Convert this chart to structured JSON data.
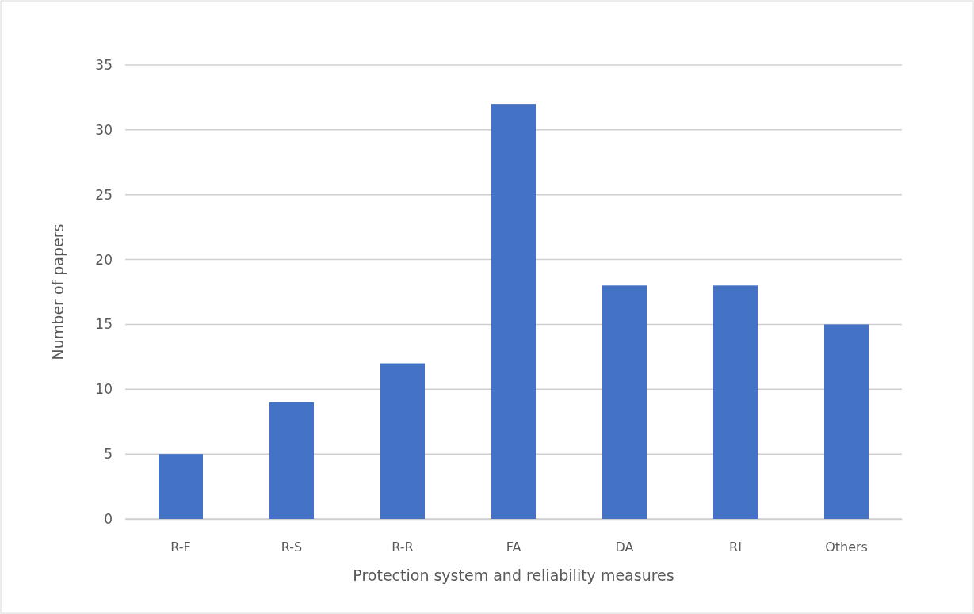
{
  "chart_data": {
    "type": "bar",
    "xlabel": "Protection system and reliability measures",
    "ylabel": "Number of papers",
    "categories": [
      "R-F",
      "R-S",
      "R-R",
      "FA",
      "DA",
      "RI",
      "Others"
    ],
    "values": [
      5,
      9,
      12,
      32,
      18,
      18,
      15
    ],
    "color": "#4472c4",
    "ylim": [
      0,
      35
    ],
    "yticks": [
      0,
      5,
      10,
      15,
      20,
      25,
      30,
      35
    ],
    "grid": "y"
  }
}
